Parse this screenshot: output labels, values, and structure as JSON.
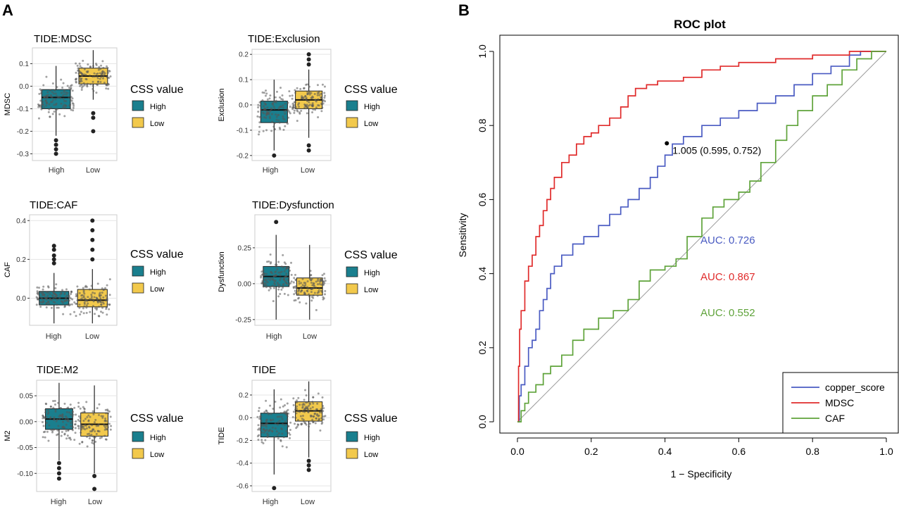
{
  "panel_labels": {
    "a": "A",
    "b": "B"
  },
  "legend_common": {
    "title": "CSS value",
    "items": [
      "High",
      "Low"
    ]
  },
  "colors": {
    "high": "#1a7f8e",
    "low": "#f2c94c",
    "copper_score": "#4a5bc2",
    "mdsc": "#e02b2b",
    "caf": "#5fa33a",
    "diag": "#9a9a9a",
    "point": "#555555"
  },
  "chart_data": [
    {
      "type": "box",
      "title": "TIDE:MDSC",
      "ylabel": "MDSC",
      "categories": [
        "High",
        "Low"
      ],
      "yticks": [
        "0.1",
        "0.0",
        "-0.1",
        "-0.2",
        "-0.3"
      ],
      "ytick_values": [
        0.1,
        0.0,
        -0.1,
        -0.2,
        -0.3
      ],
      "ylim": [
        -0.33,
        0.17
      ],
      "boxes": [
        {
          "name": "High",
          "q1": -0.1,
          "median": -0.05,
          "q3": -0.015,
          "whisker_low": -0.22,
          "whisker_high": 0.09,
          "outliers": [
            -0.24,
            -0.26,
            -0.28,
            -0.3
          ]
        },
        {
          "name": "Low",
          "q1": 0.01,
          "median": 0.045,
          "q3": 0.08,
          "whisker_low": -0.06,
          "whisker_high": 0.16,
          "outliers": [
            -0.12,
            -0.14,
            -0.2
          ]
        }
      ]
    },
    {
      "type": "box",
      "title": "TIDE:Exclusion",
      "ylabel": "Exclusion",
      "categories": [
        "High",
        "Low"
      ],
      "yticks": [
        "0.2",
        "0.1",
        "0.0",
        "-0.1",
        "-0.2"
      ],
      "ytick_values": [
        0.2,
        0.1,
        0.0,
        -0.1,
        -0.2
      ],
      "ylim": [
        -0.22,
        0.22
      ],
      "boxes": [
        {
          "name": "High",
          "q1": -0.07,
          "median": -0.02,
          "q3": 0.015,
          "whisker_low": -0.18,
          "whisker_high": 0.1,
          "outliers": [
            -0.2
          ]
        },
        {
          "name": "Low",
          "q1": -0.015,
          "median": 0.02,
          "q3": 0.055,
          "whisker_low": -0.13,
          "whisker_high": 0.14,
          "outliers": [
            0.2,
            0.18,
            0.16,
            -0.16,
            -0.18
          ]
        }
      ]
    },
    {
      "type": "box",
      "title": "TIDE:CAF",
      "ylabel": "CAF",
      "categories": [
        "High",
        "Low"
      ],
      "yticks": [
        "0.4",
        "0.2",
        "0.0"
      ],
      "ytick_values": [
        0.4,
        0.2,
        0.0
      ],
      "ylim": [
        -0.14,
        0.43
      ],
      "boxes": [
        {
          "name": "High",
          "q1": -0.035,
          "median": 0.0,
          "q3": 0.035,
          "whisker_low": -0.13,
          "whisker_high": 0.13,
          "outliers": [
            0.18,
            0.2,
            0.22,
            0.25,
            0.27
          ]
        },
        {
          "name": "Low",
          "q1": -0.045,
          "median": -0.01,
          "q3": 0.045,
          "whisker_low": -0.13,
          "whisker_high": 0.15,
          "outliers": [
            0.2,
            0.25,
            0.3,
            0.35,
            0.4
          ]
        }
      ]
    },
    {
      "type": "box",
      "title": "TIDE:Dysfunction",
      "ylabel": "Dysfunction",
      "categories": [
        "High",
        "Low"
      ],
      "yticks": [
        "0.25",
        "0.00",
        "-0.25"
      ],
      "ytick_values": [
        0.25,
        0.0,
        -0.25
      ],
      "ylim": [
        -0.29,
        0.48
      ],
      "boxes": [
        {
          "name": "High",
          "q1": -0.02,
          "median": 0.05,
          "q3": 0.12,
          "whisker_low": -0.25,
          "whisker_high": 0.34,
          "outliers": [
            0.43
          ]
        },
        {
          "name": "Low",
          "q1": -0.08,
          "median": -0.03,
          "q3": 0.04,
          "whisker_low": -0.25,
          "whisker_high": 0.27,
          "outliers": []
        }
      ]
    },
    {
      "type": "box",
      "title": "TIDE:M2",
      "ylabel": "M2",
      "categories": [
        "High",
        "Low"
      ],
      "yticks": [
        "0.05",
        "0.00",
        "-0.05",
        "-0.10"
      ],
      "ytick_values": [
        0.05,
        0.0,
        -0.05,
        -0.1
      ],
      "ylim": [
        -0.135,
        0.08
      ],
      "boxes": [
        {
          "name": "High",
          "q1": -0.015,
          "median": 0.005,
          "q3": 0.025,
          "whisker_low": -0.075,
          "whisker_high": 0.075,
          "outliers": [
            -0.08,
            -0.09,
            -0.1,
            -0.11
          ]
        },
        {
          "name": "Low",
          "q1": -0.028,
          "median": -0.005,
          "q3": 0.017,
          "whisker_low": -0.1,
          "whisker_high": 0.07,
          "outliers": [
            -0.105,
            -0.13
          ]
        }
      ]
    },
    {
      "type": "box",
      "title": "TIDE",
      "ylabel": "TIDE",
      "categories": [
        "High",
        "Low"
      ],
      "yticks": [
        "0.2",
        "0.0",
        "-0.2",
        "-0.4",
        "-0.6"
      ],
      "ytick_values": [
        0.2,
        0.0,
        -0.2,
        -0.4,
        -0.6
      ],
      "ylim": [
        -0.65,
        0.33
      ],
      "boxes": [
        {
          "name": "High",
          "q1": -0.17,
          "median": -0.05,
          "q3": 0.04,
          "whisker_low": -0.5,
          "whisker_high": 0.25,
          "outliers": [
            -0.62
          ]
        },
        {
          "name": "Low",
          "q1": -0.03,
          "median": 0.06,
          "q3": 0.14,
          "whisker_low": -0.35,
          "whisker_high": 0.32,
          "outliers": [
            -0.38,
            -0.42,
            -0.46
          ]
        }
      ]
    },
    {
      "type": "line",
      "title": "ROC plot",
      "xlabel": "1 − Specificity",
      "ylabel": "Sensitivity",
      "xlim": [
        0,
        1
      ],
      "ylim": [
        0,
        1
      ],
      "xticks": [
        "0.0",
        "0.2",
        "0.4",
        "0.6",
        "0.8",
        "1.0"
      ],
      "yticks": [
        "0.0",
        "0.2",
        "0.4",
        "0.6",
        "0.8",
        "1.0"
      ],
      "tick_values": [
        0,
        0.2,
        0.4,
        0.6,
        0.8,
        1.0
      ],
      "series": [
        {
          "name": "copper_score",
          "auc_label": "AUC: 0.726",
          "x": [
            0,
            0.005,
            0.01,
            0.02,
            0.03,
            0.04,
            0.05,
            0.06,
            0.07,
            0.08,
            0.09,
            0.1,
            0.12,
            0.15,
            0.18,
            0.22,
            0.25,
            0.28,
            0.3,
            0.33,
            0.36,
            0.38,
            0.4,
            0.42,
            0.45,
            0.5,
            0.55,
            0.6,
            0.65,
            0.7,
            0.75,
            0.8,
            0.85,
            0.9,
            0.93,
            0.96,
            1.0
          ],
          "y": [
            0,
            0.07,
            0.1,
            0.15,
            0.2,
            0.22,
            0.25,
            0.3,
            0.33,
            0.36,
            0.4,
            0.42,
            0.45,
            0.48,
            0.5,
            0.53,
            0.56,
            0.58,
            0.6,
            0.63,
            0.66,
            0.69,
            0.72,
            0.75,
            0.77,
            0.8,
            0.82,
            0.84,
            0.86,
            0.88,
            0.91,
            0.94,
            0.96,
            0.99,
            1.0,
            1.0,
            1.0
          ]
        },
        {
          "name": "MDSC",
          "auc_label": "AUC: 0.867",
          "x": [
            0,
            0.003,
            0.006,
            0.01,
            0.02,
            0.03,
            0.04,
            0.05,
            0.06,
            0.07,
            0.08,
            0.09,
            0.1,
            0.12,
            0.14,
            0.16,
            0.18,
            0.2,
            0.22,
            0.25,
            0.28,
            0.3,
            0.32,
            0.35,
            0.38,
            0.4,
            0.45,
            0.5,
            0.55,
            0.6,
            0.7,
            0.8,
            0.9,
            1.0
          ],
          "y": [
            0,
            0.15,
            0.25,
            0.3,
            0.38,
            0.42,
            0.45,
            0.5,
            0.53,
            0.57,
            0.6,
            0.63,
            0.66,
            0.7,
            0.72,
            0.75,
            0.77,
            0.78,
            0.8,
            0.82,
            0.85,
            0.88,
            0.9,
            0.91,
            0.92,
            0.92,
            0.93,
            0.95,
            0.96,
            0.97,
            0.98,
            0.99,
            1.0,
            1.0
          ]
        },
        {
          "name": "CAF",
          "auc_label": "AUC: 0.552",
          "x": [
            0,
            0.01,
            0.02,
            0.03,
            0.05,
            0.07,
            0.09,
            0.12,
            0.15,
            0.18,
            0.22,
            0.26,
            0.3,
            0.33,
            0.36,
            0.4,
            0.43,
            0.46,
            0.5,
            0.53,
            0.56,
            0.6,
            0.63,
            0.66,
            0.7,
            0.73,
            0.76,
            0.8,
            0.84,
            0.88,
            0.92,
            0.96,
            1.0
          ],
          "y": [
            0,
            0.03,
            0.05,
            0.08,
            0.1,
            0.13,
            0.15,
            0.18,
            0.22,
            0.25,
            0.28,
            0.3,
            0.33,
            0.38,
            0.41,
            0.42,
            0.44,
            0.5,
            0.55,
            0.58,
            0.6,
            0.62,
            0.65,
            0.7,
            0.76,
            0.8,
            0.84,
            0.88,
            0.91,
            0.95,
            0.98,
            1.0,
            1.0
          ]
        }
      ],
      "cutoff_point": {
        "x": 0.405,
        "y": 0.752,
        "label": "1.005 (0.595, 0.752)"
      }
    }
  ]
}
